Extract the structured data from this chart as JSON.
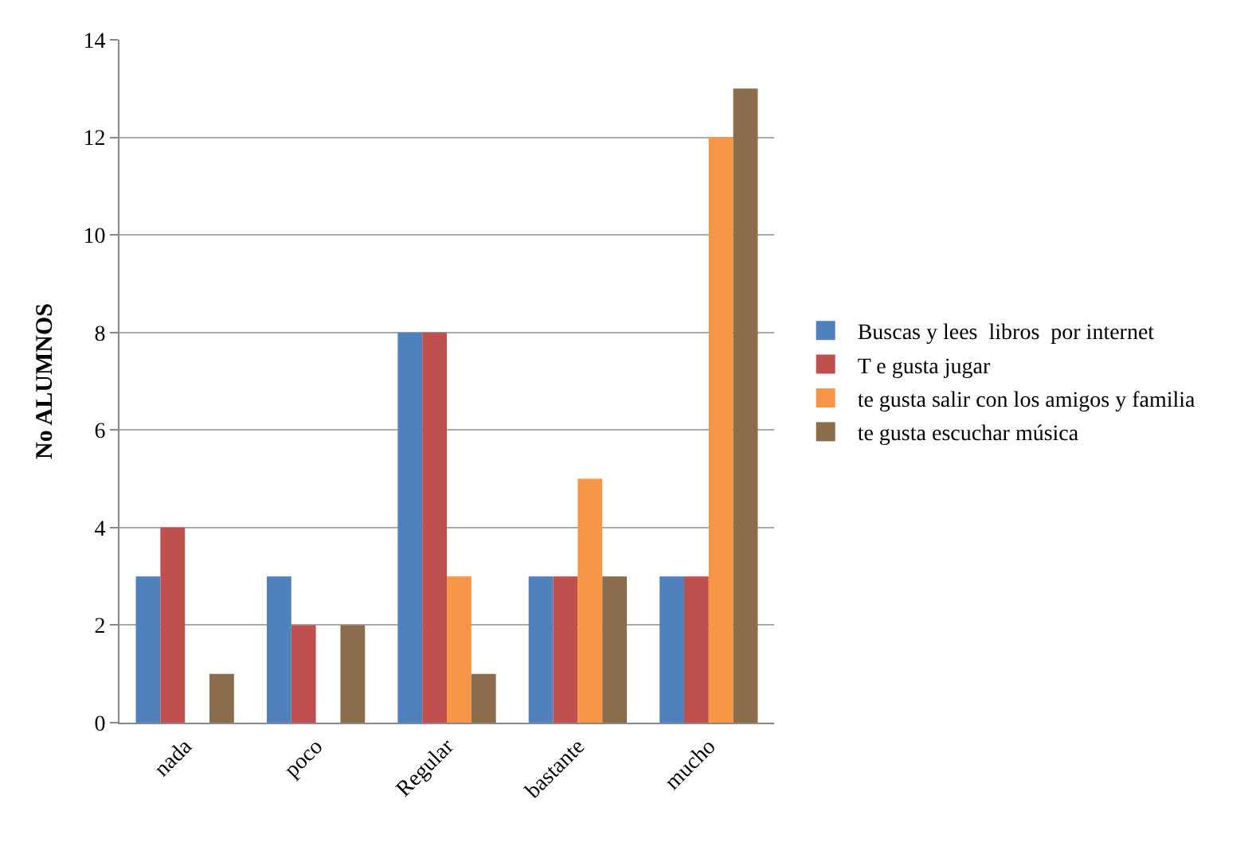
{
  "chart_data": {
    "type": "bar",
    "ylabel": "No ALUMNOS",
    "categories": [
      "nada",
      "poco",
      "Regular",
      "bastante",
      "mucho"
    ],
    "series": [
      {
        "name": "Buscas y lees  libros  por internet",
        "color": "#4f81bd",
        "values": [
          3,
          3,
          8,
          3,
          3
        ]
      },
      {
        "name": "T e gusta jugar",
        "color": "#c0504d",
        "values": [
          4,
          2,
          8,
          3,
          3
        ]
      },
      {
        "name": "te gusta salir con los amigos y familia",
        "color": "#f79646",
        "values": [
          0,
          0,
          3,
          5,
          12
        ]
      },
      {
        "name": "te gusta escuchar música",
        "color": "#8b6d4b",
        "values": [
          1,
          2,
          1,
          3,
          13
        ]
      }
    ],
    "ylim": [
      0,
      14
    ],
    "yticks": [
      0,
      2,
      4,
      6,
      8,
      10,
      12,
      14
    ],
    "grid": "y",
    "legend": "right"
  }
}
